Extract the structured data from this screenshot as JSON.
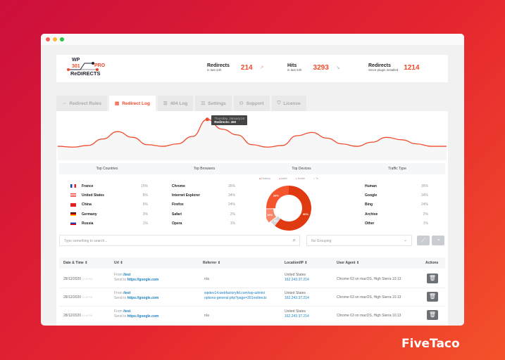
{
  "brand": "FiveTaco",
  "logo": {
    "line1": "WP",
    "line2": "301",
    "line3": "ReDIRECTS",
    "badge": "PRO"
  },
  "stats": [
    {
      "title": "Redirects",
      "sub": "in last 24h",
      "value": "214",
      "trend": "up"
    },
    {
      "title": "Hits",
      "sub": "in last 24h",
      "value": "3293",
      "trend": "down"
    },
    {
      "title": "Redirects",
      "sub": "Since plugin installed",
      "value": "1214"
    }
  ],
  "tabs": [
    {
      "label": "Redirect Rules",
      "active": false
    },
    {
      "label": "Redirect Log",
      "active": true
    },
    {
      "label": "404 Log",
      "active": false
    },
    {
      "label": "Settings",
      "active": false
    },
    {
      "label": "Support",
      "active": false
    },
    {
      "label": "License",
      "active": false
    }
  ],
  "chart_data": {
    "type": "line",
    "values": [
      120,
      110,
      130,
      210,
      300,
      230,
      140,
      120,
      150,
      240,
      450,
      330,
      260,
      140,
      110,
      130,
      250,
      290,
      220,
      150,
      120,
      170,
      230,
      200,
      150,
      120,
      120
    ],
    "tooltip": {
      "date": "Thursday, January1st",
      "label": "Redirects: 450"
    },
    "color": "#f04a2a"
  },
  "sections": {
    "countries": "Top Countries",
    "browsers": "Top Browsers",
    "devices": "Top Devices",
    "traffic": "Traffic Type"
  },
  "countries": [
    {
      "name": "France",
      "pct": "15%"
    },
    {
      "name": "United States",
      "pct": "8%"
    },
    {
      "name": "China",
      "pct": "6%"
    },
    {
      "name": "Germany",
      "pct": "3%"
    },
    {
      "name": "Russia",
      "pct": "1%"
    }
  ],
  "browsers": [
    {
      "name": "Chrome",
      "pct": "35%"
    },
    {
      "name": "Internet Explorer",
      "pct": "34%"
    },
    {
      "name": "Firefox",
      "pct": "24%"
    },
    {
      "name": "Safari",
      "pct": "2%"
    },
    {
      "name": "Opera",
      "pct": "1%"
    }
  ],
  "devices": [
    {
      "name": "Desktop",
      "value": 60,
      "label": "60%",
      "color": "#e03a10"
    },
    {
      "name": "Tv",
      "value": 4,
      "label": "4%",
      "color": "#d6d6d6"
    },
    {
      "name": "Mobile",
      "value": 10,
      "label": "10%",
      "color": "#f7866a"
    },
    {
      "name": "tablet",
      "value": 25,
      "label": "25%",
      "color": "#f4552e"
    }
  ],
  "traffic": [
    {
      "name": "Human",
      "pct": "35%"
    },
    {
      "name": "Google",
      "pct": "34%"
    },
    {
      "name": "Bing",
      "pct": "24%"
    },
    {
      "name": "Archive",
      "pct": "2%"
    },
    {
      "name": "Other",
      "pct": "1%"
    }
  ],
  "search": {
    "placeholder": "Type something to search..."
  },
  "grouping": {
    "value": "No Grouping"
  },
  "table": {
    "headers": [
      "Date & Time",
      "Url",
      "Referrer",
      "Location/IP",
      "User Agent",
      "Actions"
    ],
    "rows": [
      {
        "date": "28/12/2020",
        "time": "11:45 PM",
        "from_label": "From",
        "from": "/test",
        "to_label": "Send to",
        "to": "https://google.com",
        "ref1": "n/a",
        "ref2": "",
        "country": "United States",
        "ip": "162.243.37.214",
        "ua": "Chrome 63 on macOS, High Sierra 10.13"
      },
      {
        "date": "28/12/2020",
        "time": "11:45 PM",
        "from_label": "From",
        "from": "/test",
        "to_label": "Send to",
        "to": "https://google.com",
        "ref1": "wpdev14.webfactoryltd.com/wp-admin/",
        "ref2": "options-general.php?page=301redirects",
        "country": "United States",
        "ip": "162.243.37.214",
        "ua": "Chrome 63 on macOS, High Sierra 10.13"
      },
      {
        "date": "28/12/2020",
        "time": "11:45 PM",
        "from_label": "From",
        "from": "/test",
        "to_label": "Send to",
        "to": "https://google.com",
        "ref1": "n/a",
        "ref2": "",
        "country": "United States",
        "ip": "162.243.37.214",
        "ua": "Chrome 63 on macOS, High Sierra 10.13"
      }
    ]
  }
}
